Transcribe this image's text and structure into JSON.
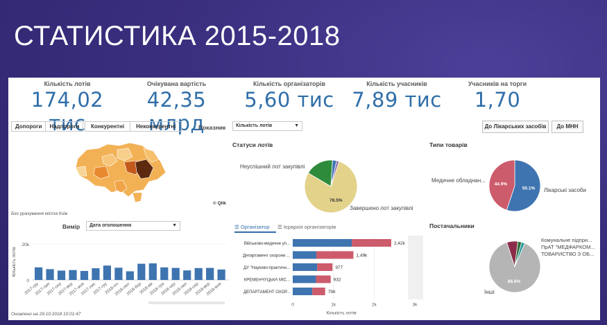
{
  "slide": {
    "title": "СТАТИСТИКА 2015-2018"
  },
  "kpis": [
    {
      "label": "Кількість лотів",
      "value": "174,02 тис"
    },
    {
      "label": "Очікувана вартість",
      "value": "42,35 млрд"
    },
    {
      "label": "Кількість організаторів",
      "value": "5,60 тис"
    },
    {
      "label": "Кількість учасників",
      "value": "7,89 тис"
    },
    {
      "label": "Учасників на торги",
      "value": "1,70"
    }
  ],
  "filters": {
    "group1": [
      "Допороги",
      "Надпороги"
    ],
    "group2": [
      "Конкурентні",
      "Неконкурентні"
    ],
    "indicator_label": "Показник",
    "indicator_value": "Кількість лотів",
    "btn_lik": "До Лікарських засобів",
    "btn_mnn": "До МНН"
  },
  "map": {
    "note": "Без урахування міста Київ",
    "credit": "© Qlik"
  },
  "dimension": {
    "label": "Вимір",
    "value": "Дата оголошення"
  },
  "colors": {
    "blue": "#3e74b0",
    "red": "#cc5b6b",
    "green": "#2e8b3c",
    "yellow": "#e3d28a",
    "grey": "#b5b5b5",
    "darkred": "#8b2d4a",
    "teal": "#2a9a9a"
  },
  "status_chart": {
    "title": "Статуси лотів",
    "label_fail": "Неуспішний лот закупівлі",
    "label_done": "Завершено лот закупівлі"
  },
  "goods_chart": {
    "title": "Типи товарів",
    "label_med": "Медичне обладнан...",
    "label_drug": "Лікарські засоби"
  },
  "suppliers": {
    "title": "Постачальники",
    "labels": [
      "Комунальне підпри...",
      "ПрАТ \"МЕДФАРКОМ...",
      "ТОВАРИСТВО З ОБ..."
    ],
    "other": "Інші"
  },
  "org_tabs": {
    "tab1": "Організатор",
    "tab2": "Ієрархія організаторів",
    "xlabel": "Кількість лотів"
  },
  "footer": "Оновлено на 29.10.2018 10:01:47",
  "chart_data": [
    {
      "type": "bar",
      "ylabel": "Кількість лотів",
      "yticks": [
        "0",
        "20k"
      ],
      "ylim": [
        0,
        20000
      ],
      "categories": [
        "2017-гру",
        "2017-лип",
        "2017-сер",
        "2017-вер",
        "2017-жов",
        "2017-лис",
        "2017-гру",
        "2018-січ",
        "2018-лют",
        "2018-бер",
        "2018-кві",
        "2018-тра",
        "2018-чер",
        "2018-лип",
        "2018-сер",
        "2018-вер",
        "2018-жов"
      ],
      "values": [
        7000,
        6000,
        5200,
        5500,
        5000,
        6500,
        8000,
        6800,
        4800,
        9000,
        9200,
        7000,
        6700,
        5300,
        6600,
        6700,
        5800
      ]
    },
    {
      "type": "pie",
      "title": "Статуси лотів",
      "slices": [
        {
          "label": "Завершено лот закупівлі",
          "value": 78.5,
          "display": "78.5%"
        },
        {
          "label": "Неуспішний лот закупівлі",
          "value": 17.5,
          "display": ""
        },
        {
          "label": "",
          "value": 2.5,
          "display": ""
        },
        {
          "label": "",
          "value": 1.5,
          "display": ""
        }
      ]
    },
    {
      "type": "pie",
      "title": "Типи товарів",
      "slices": [
        {
          "label": "Лікарські засоби",
          "value": 55.1,
          "display": "55.1%"
        },
        {
          "label": "Медичне обладнан...",
          "value": 44.9,
          "display": "44.9%"
        }
      ]
    },
    {
      "type": "pie",
      "title": "Постачальники",
      "slices": [
        {
          "label": "Інші",
          "value": 88.6,
          "display": "88.6%"
        },
        {
          "label": "Комунальне підпри...",
          "value": 7.0,
          "display": ""
        },
        {
          "label": "ПрАТ \"МЕДФАРКОМ...",
          "value": 2.4,
          "display": ""
        },
        {
          "label": "ТОВАРИСТВО З ОБ...",
          "value": 2.0,
          "display": ""
        }
      ]
    },
    {
      "type": "bar",
      "orientation": "horizontal",
      "xlabel": "Кількість лотів",
      "xlim": [
        0,
        3000
      ],
      "xticks": [
        "0",
        "1k",
        "2k",
        "3k"
      ],
      "categories": [
        "Військово-медичне уп...",
        "Департамент охорони ...",
        "ДУ \"Науково-практичн...",
        "КРЕМЕНЧУЦЬКА МІС...",
        "ДЕПАРТАМЕНТ ОХОР..."
      ],
      "series": [
        {
          "name": "",
          "values": [
            1450,
            580,
            600,
            570,
            480
          ]
        },
        {
          "name": "",
          "values": [
            970,
            910,
            377,
            362,
            316
          ]
        }
      ],
      "totals": [
        "2,42k",
        "1,49k",
        "977",
        "932",
        "796"
      ]
    }
  ]
}
